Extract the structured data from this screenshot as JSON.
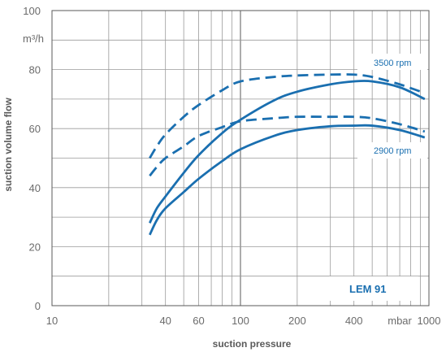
{
  "chart_data": {
    "type": "line",
    "title": "",
    "xlabel": "suction pressure",
    "ylabel": "suction volume flow",
    "y_unit": "m³/h",
    "x_unit": "mbar",
    "x_scale": "log",
    "xlim": [
      10,
      1000
    ],
    "ylim": [
      0,
      100
    ],
    "x_tick_labels": [
      "10",
      "40",
      "60",
      "100",
      "200",
      "400",
      "mbar",
      "1000"
    ],
    "y_tick_labels": [
      "0",
      "20",
      "40",
      "60",
      "80",
      "100"
    ],
    "grid": true,
    "model_label": "LEM 91",
    "series": [
      {
        "name": "3500 rpm",
        "style": "dashed",
        "color": "#1a6fb0",
        "x": [
          33,
          36,
          40,
          50,
          60,
          80,
          100,
          150,
          200,
          300,
          400,
          500,
          700,
          950
        ],
        "y": [
          50,
          54,
          58,
          64,
          68,
          73,
          76,
          77.5,
          78,
          78.3,
          78.3,
          77.5,
          75,
          72
        ]
      },
      {
        "name": "3500 rpm",
        "style": "solid",
        "color": "#1a6fb0",
        "x": [
          33,
          36,
          40,
          50,
          60,
          80,
          100,
          150,
          200,
          300,
          400,
          500,
          700,
          950
        ],
        "y": [
          28,
          33,
          37,
          45,
          51,
          58.5,
          63,
          69.5,
          72.5,
          75,
          76,
          76,
          74,
          70
        ]
      },
      {
        "name": "2900 rpm",
        "style": "dashed",
        "color": "#1a6fb0",
        "x": [
          33,
          36,
          40,
          50,
          60,
          80,
          100,
          150,
          200,
          300,
          400,
          500,
          700,
          950
        ],
        "y": [
          44,
          47,
          50,
          54,
          57.5,
          60.5,
          62.5,
          63.5,
          64,
          64,
          64,
          63.5,
          61.5,
          59
        ]
      },
      {
        "name": "2900 rpm",
        "style": "solid",
        "color": "#1a6fb0",
        "x": [
          33,
          36,
          40,
          50,
          60,
          80,
          100,
          150,
          200,
          300,
          400,
          500,
          700,
          950
        ],
        "y": [
          24,
          29,
          33,
          38.5,
          43,
          49,
          53,
          57.5,
          59.5,
          60.8,
          61,
          61,
          59.5,
          57
        ]
      }
    ]
  }
}
